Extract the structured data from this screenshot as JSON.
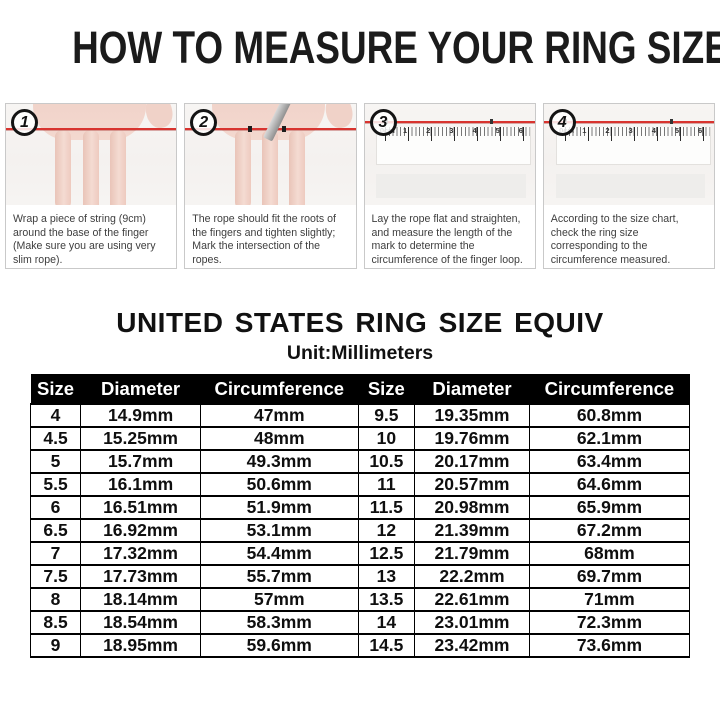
{
  "page_title": "HOW TO MEASURE YOUR RING SIZE",
  "steps": [
    {
      "number": "1",
      "caption": "Wrap a piece of string (9cm) around the base of the finger (Make sure you are using very slim rope)."
    },
    {
      "number": "2",
      "caption": "The rope should fit the roots of the fingers and tighten slightly; Mark the intersection of the ropes."
    },
    {
      "number": "3",
      "caption": "Lay the rope flat and straighten, and measure the length of the mark to determine the circumference of the finger loop."
    },
    {
      "number": "4",
      "caption": "According to the size chart, check the ring size corresponding to the circumference measured."
    }
  ],
  "ruler_labels": [
    "0cm",
    "1",
    "2",
    "3",
    "4",
    "5",
    "6"
  ],
  "size_chart": {
    "title": "UNITED STATES RING SIZE EQUIV",
    "unit_label": "Unit:Millimeters",
    "headers": [
      "Size",
      "Diameter",
      "Circumference",
      "Size",
      "Diameter",
      "Circumference"
    ],
    "rows": [
      [
        "4",
        "14.9mm",
        "47mm",
        "9.5",
        "19.35mm",
        "60.8mm"
      ],
      [
        "4.5",
        "15.25mm",
        "48mm",
        "10",
        "19.76mm",
        "62.1mm"
      ],
      [
        "5",
        "15.7mm",
        "49.3mm",
        "10.5",
        "20.17mm",
        "63.4mm"
      ],
      [
        "5.5",
        "16.1mm",
        "50.6mm",
        "11",
        "20.57mm",
        "64.6mm"
      ],
      [
        "6",
        "16.51mm",
        "51.9mm",
        "11.5",
        "20.98mm",
        "65.9mm"
      ],
      [
        "6.5",
        "16.92mm",
        "53.1mm",
        "12",
        "21.39mm",
        "67.2mm"
      ],
      [
        "7",
        "17.32mm",
        "54.4mm",
        "12.5",
        "21.79mm",
        "68mm"
      ],
      [
        "7.5",
        "17.73mm",
        "55.7mm",
        "13",
        "22.2mm",
        "69.7mm"
      ],
      [
        "8",
        "18.14mm",
        "57mm",
        "13.5",
        "22.61mm",
        "71mm"
      ],
      [
        "8.5",
        "18.54mm",
        "58.3mm",
        "14",
        "23.01mm",
        "72.3mm"
      ],
      [
        "9",
        "18.95mm",
        "59.6mm",
        "14.5",
        "23.42mm",
        "73.6mm"
      ]
    ]
  },
  "colors": {
    "string_red": "#d8342f",
    "skin_tone": "#f0d2c8",
    "table_header_bg": "#000000",
    "table_header_text": "#ffffff",
    "caption_text": "#3e3e3e"
  }
}
